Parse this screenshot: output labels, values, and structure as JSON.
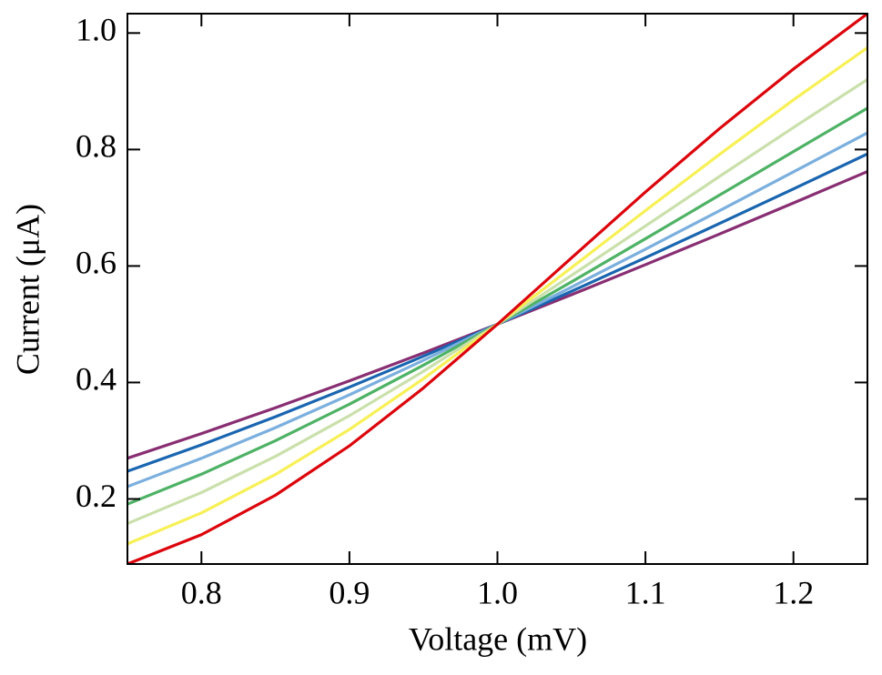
{
  "chart_data": {
    "type": "line",
    "x_label": "Voltage (mV)",
    "y_label": "Current (μA)",
    "x": [
      0.75,
      0.8,
      0.85,
      0.9,
      0.95,
      1.0,
      1.05,
      1.1,
      1.15,
      1.2,
      1.25
    ],
    "series": [
      {
        "color": "#882E72",
        "values": [
          0.27,
          0.3122,
          0.3566,
          0.4028,
          0.4507,
          0.5,
          0.5506,
          0.6023,
          0.6548,
          0.7082,
          0.7622
        ]
      },
      {
        "color": "#1965B0",
        "values": [
          0.2476,
          0.2929,
          0.3412,
          0.392,
          0.4451,
          0.5,
          0.5565,
          0.6142,
          0.6729,
          0.7324,
          0.7924
        ]
      },
      {
        "color": "#7BAFDE",
        "values": [
          0.2212,
          0.2698,
          0.3224,
          0.3788,
          0.4381,
          0.5,
          0.5637,
          0.6289,
          0.6949,
          0.7616,
          0.8286
        ]
      },
      {
        "color": "#4EB265",
        "values": [
          0.1911,
          0.2425,
          0.3,
          0.3627,
          0.4297,
          0.5,
          0.5727,
          0.6468,
          0.7216,
          0.7965,
          0.871
        ]
      },
      {
        "color": "#CAE0AB",
        "values": [
          0.1577,
          0.211,
          0.2731,
          0.343,
          0.4192,
          0.5,
          0.5837,
          0.6687,
          0.7537,
          0.8378,
          0.9203
        ]
      },
      {
        "color": "#F7F056",
        "values": [
          0.1228,
          0.1761,
          0.242,
          0.3194,
          0.4064,
          0.5,
          0.5971,
          0.6951,
          0.7915,
          0.8852,
          0.9749
        ]
      },
      {
        "color": "#DC050C",
        "values": [
          0.0883,
          0.1387,
          0.2064,
          0.2912,
          0.3906,
          0.5,
          0.6138,
          0.727,
          0.8358,
          0.9382,
          1.0333
        ]
      }
    ],
    "xlim": [
      0.75,
      1.25
    ],
    "ylim": [
      0.0883,
      1.0333
    ],
    "xticks": [
      0.8,
      0.9,
      {
        "value": 1,
        "label": "1.0"
      },
      1.1,
      1.2
    ],
    "yticks": [
      0.2,
      0.4,
      0.6,
      0.8,
      {
        "value": 1,
        "label": "1.0"
      }
    ],
    "grid": false
  }
}
